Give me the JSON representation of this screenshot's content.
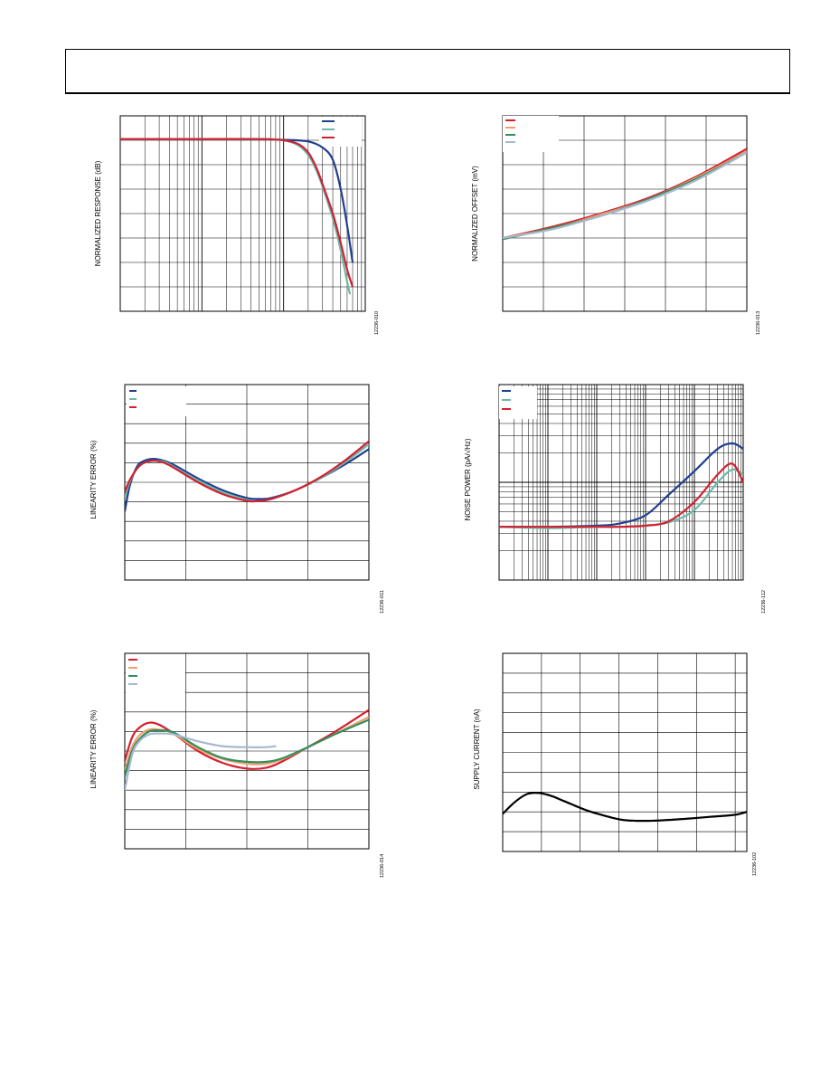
{
  "page": {
    "header_title": ""
  },
  "chart_data": [
    {
      "id": "c1",
      "type": "line",
      "title": "",
      "xlabel": "",
      "ylabel": "NORMALIZED RESPONSE (dB)",
      "x_scale": "log",
      "code": "12236-010",
      "xlim": [
        1,
        1000
      ],
      "ylim": [
        -8,
        0
      ],
      "series": [
        {
          "color": "#1f3f8f",
          "x": [
            1,
            10,
            50,
            100,
            200,
            300,
            400,
            500,
            600,
            700
          ],
          "y": [
            -0.95,
            -0.95,
            -0.95,
            -0.98,
            -1.05,
            -1.3,
            -1.8,
            -3.0,
            -4.5,
            -6.0
          ]
        },
        {
          "color": "#6fb8a8",
          "x": [
            1,
            10,
            50,
            100,
            150,
            200,
            250,
            300,
            400,
            500,
            600,
            650
          ],
          "y": [
            -0.95,
            -0.95,
            -0.95,
            -1.0,
            -1.2,
            -1.6,
            -2.2,
            -2.9,
            -4.2,
            -5.5,
            -6.8,
            -7.3
          ]
        },
        {
          "color": "#d3202f",
          "x": [
            1,
            10,
            50,
            100,
            150,
            200,
            250,
            300,
            400,
            500,
            600,
            700
          ],
          "y": [
            -0.95,
            -0.95,
            -0.95,
            -1.0,
            -1.15,
            -1.5,
            -2.1,
            -2.8,
            -4.0,
            -5.2,
            -6.3,
            -7.0
          ]
        }
      ]
    },
    {
      "id": "c2",
      "type": "line",
      "title": "",
      "xlabel": "",
      "ylabel": "NORMALIZED OFFSET (mV)",
      "code": "12236-013",
      "xlim": [
        0,
        100
      ],
      "ylim": [
        -8,
        0
      ],
      "series": [
        {
          "color": "#d3202f",
          "x": [
            0,
            20,
            40,
            60,
            80,
            100
          ],
          "y": [
            -5.0,
            -4.55,
            -4.0,
            -3.35,
            -2.45,
            -1.35
          ]
        },
        {
          "color": "#f0a070",
          "x": [
            0,
            20,
            40,
            60,
            80,
            100
          ],
          "y": [
            -5.0,
            -4.6,
            -4.05,
            -3.4,
            -2.5,
            -1.45
          ]
        },
        {
          "color": "#2f8f5a",
          "x": [
            0,
            20,
            40,
            60,
            80,
            100
          ],
          "y": [
            -5.05,
            -4.6,
            -4.1,
            -3.4,
            -2.55,
            -1.5
          ]
        },
        {
          "color": "#a8b8d0",
          "x": [
            0,
            20,
            40,
            60,
            80,
            100
          ],
          "y": [
            -5.0,
            -4.65,
            -4.1,
            -3.45,
            -2.6,
            -1.5
          ]
        }
      ]
    },
    {
      "id": "c3",
      "type": "line",
      "title": "",
      "xlabel": "",
      "ylabel": "LINEARITY ERROR (%)",
      "code": "12236-011",
      "xlim": [
        0,
        100
      ],
      "ylim": [
        -10,
        0
      ],
      "series": [
        {
          "color": "#1f3f8f",
          "x": [
            0,
            2,
            5,
            8,
            12,
            16,
            20,
            30,
            40,
            50,
            55,
            60,
            70,
            80,
            90,
            100
          ],
          "y": [
            -6.5,
            -5.2,
            -4.2,
            -3.9,
            -3.8,
            -3.9,
            -4.1,
            -4.8,
            -5.4,
            -5.8,
            -5.85,
            -5.8,
            -5.4,
            -4.8,
            -4.1,
            -3.3
          ]
        },
        {
          "color": "#6fb8a8",
          "x": [
            0,
            2,
            5,
            8,
            12,
            16,
            20,
            30,
            40,
            50,
            55,
            60,
            70,
            80,
            90,
            100
          ],
          "y": [
            -5.8,
            -5.0,
            -4.3,
            -4.0,
            -3.9,
            -3.95,
            -4.2,
            -4.9,
            -5.5,
            -5.9,
            -5.95,
            -5.85,
            -5.4,
            -4.8,
            -4.0,
            -3.05
          ]
        },
        {
          "color": "#d3202f",
          "x": [
            0,
            2,
            5,
            8,
            12,
            16,
            20,
            30,
            40,
            50,
            55,
            60,
            70,
            80,
            90,
            100
          ],
          "y": [
            -5.5,
            -4.9,
            -4.3,
            -4.0,
            -3.9,
            -4.0,
            -4.25,
            -5.0,
            -5.6,
            -5.95,
            -5.95,
            -5.85,
            -5.4,
            -4.75,
            -3.9,
            -2.9
          ]
        }
      ]
    },
    {
      "id": "c4",
      "type": "line",
      "title": "",
      "xlabel": "",
      "ylabel": "NOISE POWER (pA/√Hz)",
      "x_scale": "log",
      "y_scale": "log",
      "code": "12236-112",
      "xlim": [
        1,
        100000
      ],
      "ylim": [
        1,
        100
      ],
      "series": [
        {
          "color": "#1f3f8f",
          "x": [
            1,
            10,
            100,
            300,
            1000,
            3000,
            10000,
            30000,
            60000,
            100000
          ],
          "y": [
            3.5,
            3.5,
            3.6,
            3.8,
            4.6,
            7.5,
            13,
            22,
            25,
            22
          ]
        },
        {
          "color": "#6fb8a8",
          "x": [
            1,
            10,
            100,
            300,
            1000,
            3000,
            10000,
            30000,
            60000,
            100000
          ],
          "y": [
            3.5,
            3.4,
            3.5,
            3.5,
            3.6,
            3.9,
            5.2,
            10,
            13.5,
            12
          ]
        },
        {
          "color": "#d3202f",
          "x": [
            1,
            10,
            100,
            300,
            1000,
            3000,
            10000,
            30000,
            60000,
            100000
          ],
          "y": [
            3.5,
            3.5,
            3.5,
            3.5,
            3.6,
            4.0,
            6.3,
            12,
            15.5,
            10
          ]
        }
      ]
    },
    {
      "id": "c5",
      "type": "line",
      "title": "",
      "xlabel": "",
      "ylabel": "LINEARITY ERROR (%)",
      "code": "12236-014",
      "xlim": [
        0,
        100
      ],
      "ylim": [
        -10,
        0
      ],
      "series": [
        {
          "color": "#d3202f",
          "x": [
            0,
            3,
            6,
            10,
            14,
            20,
            30,
            40,
            50,
            58,
            65,
            75,
            85,
            100
          ],
          "y": [
            -5.5,
            -4.3,
            -3.8,
            -3.55,
            -3.65,
            -4.1,
            -5.0,
            -5.6,
            -5.9,
            -5.85,
            -5.5,
            -4.8,
            -4.1,
            -2.9
          ]
        },
        {
          "color": "#f0a070",
          "x": [
            0,
            3,
            6,
            10,
            14,
            20,
            30,
            40,
            50,
            58,
            65,
            75,
            85,
            100
          ],
          "y": [
            -6.0,
            -4.8,
            -4.2,
            -3.9,
            -3.9,
            -4.1,
            -4.9,
            -5.4,
            -5.65,
            -5.65,
            -5.4,
            -4.8,
            -4.2,
            -3.25
          ]
        },
        {
          "color": "#2f8f5a",
          "x": [
            0,
            3,
            6,
            10,
            14,
            20,
            30,
            40,
            50,
            58,
            65,
            75,
            85,
            100
          ],
          "y": [
            -6.3,
            -5.0,
            -4.4,
            -4.0,
            -3.95,
            -4.05,
            -4.8,
            -5.35,
            -5.55,
            -5.55,
            -5.35,
            -4.8,
            -4.2,
            -3.4
          ]
        },
        {
          "color": "#a8b8d0",
          "x": [
            0,
            3,
            6,
            10,
            14,
            20,
            30,
            40,
            50,
            58,
            62
          ],
          "y": [
            -7.0,
            -5.2,
            -4.5,
            -4.15,
            -4.1,
            -4.15,
            -4.5,
            -4.75,
            -4.8,
            -4.8,
            -4.75
          ]
        }
      ]
    },
    {
      "id": "c6",
      "type": "line",
      "title": "",
      "xlabel": "",
      "ylabel": "SUPPLY CURRENT (nA)",
      "code": "12236-102",
      "xlim": [
        0,
        100
      ],
      "ylim": [
        -10,
        0
      ],
      "series": [
        {
          "color": "#000000",
          "x": [
            0,
            5,
            10,
            15,
            20,
            25,
            35,
            45,
            50,
            55,
            60,
            65,
            75,
            85,
            95,
            100
          ],
          "y": [
            -8.1,
            -7.5,
            -7.1,
            -7.05,
            -7.2,
            -7.45,
            -7.95,
            -8.3,
            -8.42,
            -8.45,
            -8.45,
            -8.43,
            -8.35,
            -8.25,
            -8.15,
            -8.0
          ]
        }
      ]
    }
  ]
}
